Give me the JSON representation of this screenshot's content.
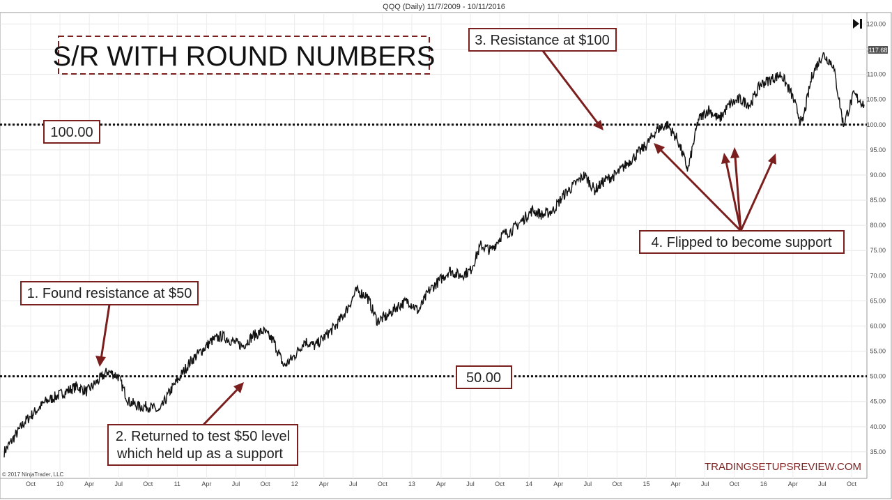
{
  "chart_data": {
    "type": "line",
    "title": "QQQ (Daily)  11/7/2009 - 10/11/2016",
    "main_title": "S/R WITH ROUND NUMBERS",
    "copyright": "© 2017 NinjaTrader, LLC",
    "watermark": "TRADINGSETUPSREVIEW.COM",
    "last_price": "117.68",
    "ylim": [
      30,
      122
    ],
    "y_ticks": [
      "35.00",
      "40.00",
      "45.00",
      "50.00",
      "55.00",
      "60.00",
      "65.00",
      "70.00",
      "75.00",
      "80.00",
      "85.00",
      "90.00",
      "95.00",
      "100.00",
      "105.00",
      "110.00",
      "115.00",
      "120.00"
    ],
    "x_ticks": [
      "Oct",
      "10",
      "Apr",
      "Jul",
      "Oct",
      "11",
      "Apr",
      "Jul",
      "Oct",
      "12",
      "Apr",
      "Jul",
      "Oct",
      "13",
      "Apr",
      "Jul",
      "Oct",
      "14",
      "Apr",
      "Jul",
      "Oct",
      "15",
      "Apr",
      "Jul",
      "Oct",
      "16",
      "Apr",
      "Jul",
      "Oct"
    ],
    "levels": [
      {
        "value": 100,
        "label": "100.00"
      },
      {
        "value": 50,
        "label": "50.00"
      }
    ],
    "annotations": [
      "1. Found resistance at $50",
      "2. Returned to test $50 level",
      "which held up as a support",
      "3. Resistance at $100",
      "4. Flipped to become support"
    ],
    "series": [
      {
        "x": [
          "2009-11",
          "2009-12",
          "2010-01",
          "2010-02",
          "2010-03",
          "2010-04",
          "2010-05",
          "2010-06",
          "2010-07",
          "2010-08",
          "2010-09",
          "2010-10",
          "2010-11",
          "2010-12",
          "2011-01",
          "2011-02",
          "2011-03",
          "2011-04",
          "2011-05",
          "2011-06",
          "2011-07",
          "2011-08",
          "2011-09",
          "2011-10",
          "2011-11",
          "2011-12",
          "2012-01",
          "2012-02",
          "2012-03",
          "2012-04",
          "2012-05",
          "2012-06",
          "2012-07",
          "2012-08",
          "2012-09",
          "2012-10",
          "2012-11",
          "2012-12",
          "2013-01",
          "2013-02",
          "2013-03",
          "2013-04",
          "2013-05",
          "2013-06",
          "2013-07",
          "2013-08",
          "2013-09",
          "2013-10",
          "2013-11",
          "2013-12",
          "2014-01",
          "2014-02",
          "2014-03",
          "2014-04",
          "2014-05",
          "2014-06",
          "2014-07",
          "2014-08",
          "2014-09",
          "2014-10",
          "2014-11",
          "2014-12",
          "2015-01",
          "2015-02",
          "2015-03",
          "2015-04",
          "2015-05",
          "2015-06",
          "2015-07",
          "2015-08",
          "2015-09",
          "2015-10",
          "2015-11",
          "2015-12",
          "2016-01",
          "2016-02",
          "2016-03",
          "2016-04",
          "2016-05",
          "2016-06",
          "2016-07",
          "2016-08",
          "2016-09",
          "2016-10"
        ],
        "values": [
          35,
          38,
          41,
          43,
          45,
          46,
          47,
          48,
          47,
          49,
          51,
          50,
          45,
          44,
          44,
          43,
          47,
          50,
          53,
          55,
          57,
          58,
          57,
          56,
          58,
          59,
          57,
          52,
          54,
          57,
          56,
          58,
          60,
          63,
          67,
          66,
          61,
          62,
          64,
          65,
          63,
          67,
          69,
          71,
          70,
          71,
          76,
          75,
          78,
          79,
          81,
          83,
          82,
          83,
          86,
          88,
          90,
          87,
          89,
          90,
          92,
          94,
          96,
          99,
          100,
          97,
          91,
          101,
          103,
          101,
          104,
          105,
          104,
          108,
          109,
          110,
          106,
          100,
          110,
          114,
          112,
          100,
          106,
          104
        ]
      }
    ]
  }
}
